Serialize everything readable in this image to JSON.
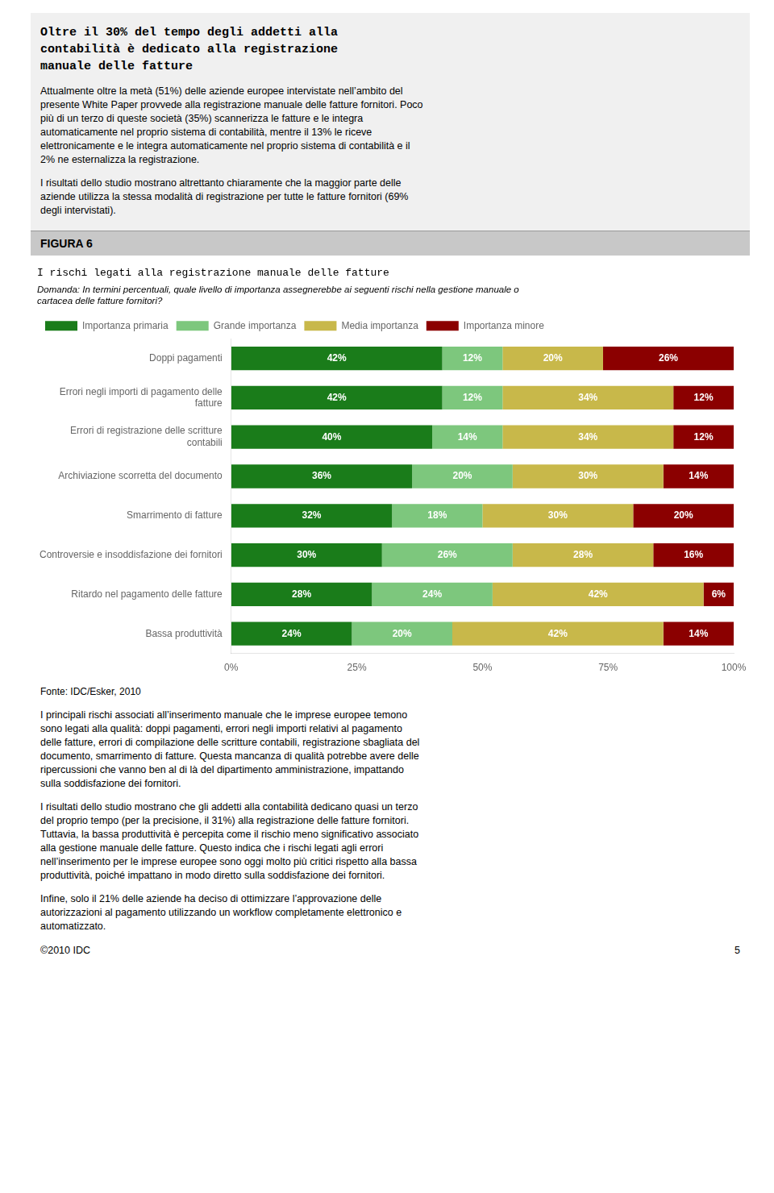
{
  "chart_data": {
    "type": "bar",
    "orientation": "horizontal",
    "stacked": true,
    "title": "I rischi legati alla registrazione manuale delle fatture",
    "subtitle": "Domanda: In termini percentuali, quale livello di importanza assegnerebbe ai seguenti rischi nella gestione manuale o\ncartacea delle fatture fornitori?",
    "annotations": [
      "Oltre il 30% del tempo degli addetti alla",
      "contabilità è dedicato alla registrazione",
      "manuale delle fatture",
      "Attualmente oltre la metà (51%) delle aziende europee intervistate nell’ambito del\npresente White Paper provvede alla registrazione manuale delle fatture fornitori. Poco\npiù di un terzo di queste società (35%) scannerizza le fatture e le integra\nautomaticamente nel proprio sistema di contabilità, mentre il 13% le riceve\nelettronicamente e le integra automaticamente nel proprio sistema di contabilità e il\n2% ne esternalizza la registrazione.",
      "I risultati dello studio mostrano altrettanto chiaramente che la maggior parte delle\naziende utilizza la stessa modalità di registrazione per tutte le fatture fornitori (69%\ndegli intervistati).",
      "FIGURA 6",
      "Fonte: IDC/Esker, 2010",
      "I principali rischi associati all’inserimento manuale che le imprese europee temono\nsono legati alla qualità: doppi pagamenti, errori negli importi relativi al pagamento\ndelle fatture, errori di compilazione delle scritture contabili, registrazione sbagliata del\ndocumento, smarrimento di fatture. Questa mancanza di qualità potrebbe avere delle\nripercussioni che vanno ben al di là del dipartimento amministrazione, impattando\nsulla soddisfazione dei fornitori.",
      "I risultati dello studio mostrano che gli addetti alla contabilità dedicano quasi un terzo\ndel proprio tempo (per la precisione, il 31%) alla registrazione delle fatture fornitori.\nTuttavia, la bassa produttività è percepita come il rischio meno significativo associato\nalla gestione manuale delle fatture. Questo indica che i rischi legati agli errori\nnell’inserimento per le imprese europee sono oggi molto più critici rispetto alla bassa\nproduttività, poiché impattano in modo diretto sulla soddisfazione dei fornitori.",
      "Infine, solo il 21% delle aziende ha deciso di ottimizzare l’approvazione delle\nautorizzazioni al pagamento utilizzando un workflow completamente elettronico e\nautomatizzato.",
      "©2010 IDC",
      "5"
    ],
    "categories": [
      "Doppi pagamenti",
      "Errori negli importi di pagamento delle\nfatture",
      "Errori di registrazione delle scritture\ncontabili",
      "Archiviazione scorretta del documento",
      "Smarrimento di fatture",
      "Controversie e insoddisfazione dei fornitori",
      "Ritardo nel pagamento delle fatture",
      "Bassa produttività"
    ],
    "series": [
      {
        "name": "Importanza primaria",
        "color": "#1a7c1a",
        "values": [
          42,
          42,
          40,
          36,
          32,
          30,
          28,
          24
        ],
        "value_labels": [
          "42%",
          "42%",
          "40%",
          "36%",
          "32%",
          "30%",
          "28%",
          "24%"
        ]
      },
      {
        "name": "Grande importanza",
        "color": "#7dc77d",
        "values": [
          12,
          12,
          14,
          20,
          18,
          26,
          24,
          20
        ],
        "value_labels": [
          "12%",
          "12%",
          "14%",
          "20%",
          "18%",
          "26%",
          "24%",
          "20%"
        ]
      },
      {
        "name": "Media importanza",
        "color": "#c8b84a",
        "values": [
          20,
          34,
          34,
          30,
          30,
          28,
          42,
          42
        ],
        "value_labels": [
          "20%",
          "34%",
          "34%",
          "30%",
          "30%",
          "28%",
          "42%",
          "42%"
        ]
      },
      {
        "name": "Importanza minore",
        "color": "#8b0000",
        "values": [
          26,
          12,
          12,
          14,
          20,
          16,
          6,
          14
        ],
        "value_labels": [
          "26%",
          "12%",
          "12%",
          "14%",
          "20%",
          "16%",
          "6%",
          "14%"
        ]
      }
    ],
    "xlim": [
      0,
      100
    ],
    "xticks": [
      {
        "value": 0,
        "label": "0%"
      },
      {
        "value": 25,
        "label": "25%"
      },
      {
        "value": 50,
        "label": "50%"
      },
      {
        "value": 75,
        "label": "75%"
      },
      {
        "value": 100,
        "label": "100%"
      }
    ],
    "data_labels": true,
    "legend": "top",
    "grid": false
  }
}
